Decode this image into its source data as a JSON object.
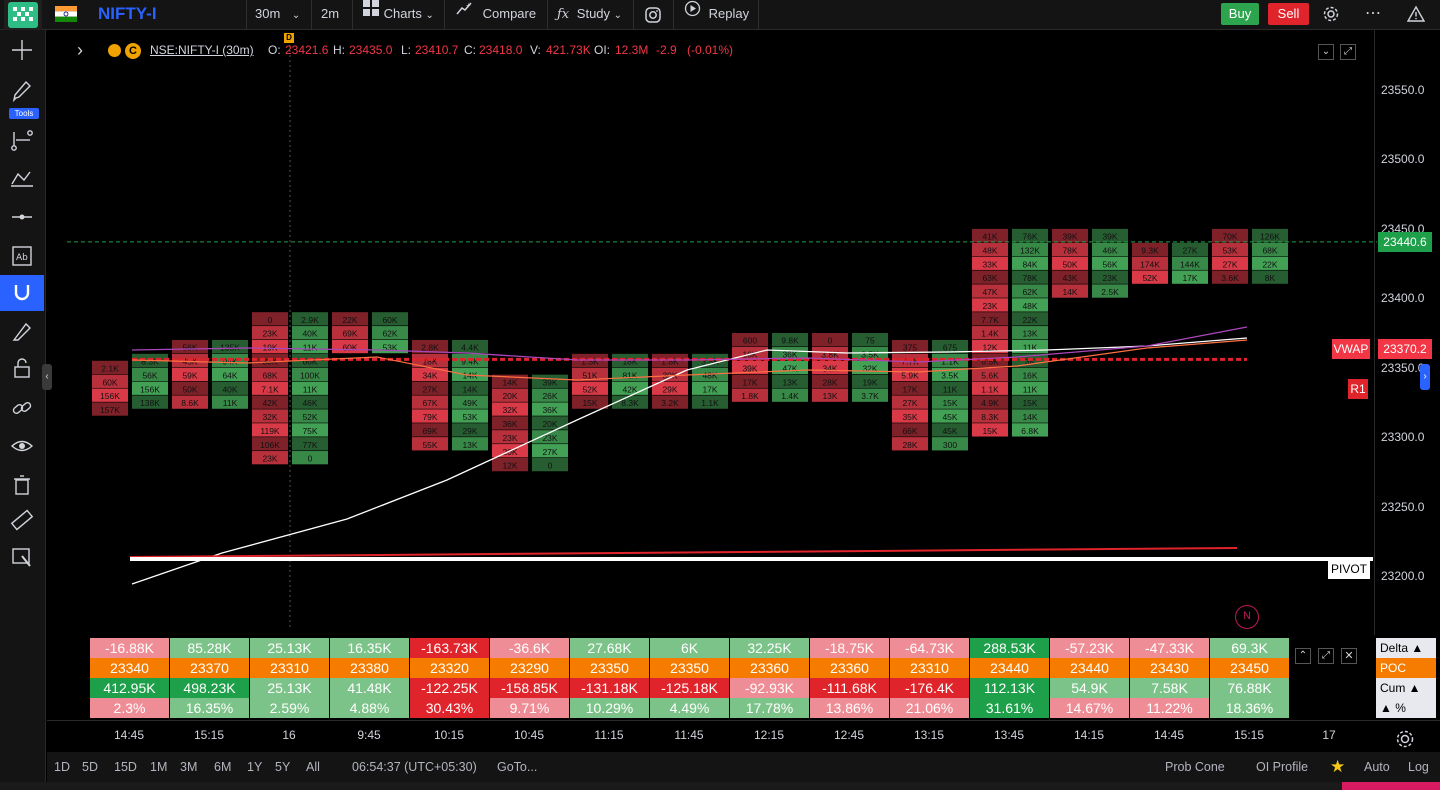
{
  "header": {
    "symbol": "NIFTY-I",
    "interval": "30m",
    "sub_interval": "2m",
    "charts_label": "Charts",
    "compare_label": "Compare",
    "study_label": "Study",
    "replay_label": "Replay",
    "buy_label": "Buy",
    "sell_label": "Sell"
  },
  "left_toolbar": {
    "tools_badge": "Tools",
    "icons": [
      "crosshair-icon",
      "pencil-icon",
      "fib-tool-icon",
      "pattern-icon",
      "horizontal-line-icon",
      "text-box-icon",
      "magnet-icon",
      "brush-icon",
      "lock-icon",
      "link-icon",
      "eye-icon",
      "trash-icon",
      "ruler-icon",
      "zoom-icon"
    ]
  },
  "legend": {
    "symbol": "NSE:NIFTY-I (30m)",
    "o_label": "O:",
    "o_value": "23421.6",
    "h_label": "H:",
    "h_value": "23435.0",
    "l_label": "L:",
    "l_value": "23410.7",
    "c_label": "C:",
    "c_value": "23418.0",
    "v_label": "V:",
    "v_value": "421.73K",
    "oi_label": "OI:",
    "oi_value": "12.3M",
    "change": "-2.9",
    "change_pct": "(-0.01%)",
    "d_marker": "D",
    "n_marker": "N"
  },
  "price_axis": {
    "ticks": [
      "23550.0",
      "23500.0",
      "23450.0",
      "23400.0",
      "23350.0",
      "23300.0",
      "23250.0",
      "23200.0"
    ],
    "last_price": "23440.6",
    "vwap_label": "VWAP",
    "vwap_value": "23370.2",
    "r1_label": "R1",
    "pivot_label": "PIVOT"
  },
  "colors": {
    "buy": "#2da44e",
    "sell": "#e0242b",
    "accent": "#2962ff",
    "last_price": "#1e9f49",
    "vwap": "#f23645",
    "poc_row": "#f57c00"
  },
  "chart_data": {
    "type": "footprint",
    "ylim": [
      23185,
      23575
    ],
    "last_price_line": 23440.6,
    "pivot_level": 23213,
    "bars": [
      {
        "time": "14:45a",
        "top": 23350,
        "cells": [
          "2.1K",
          "60K",
          "156K",
          "157K"
        ],
        "sides": [
          "r",
          "r",
          "r",
          "r"
        ]
      },
      {
        "time": "14:45b",
        "top": 23355,
        "cells": [
          "8.3K",
          "56K",
          "156K",
          "138K"
        ],
        "sides": [
          "g",
          "g",
          "g",
          "g"
        ]
      },
      {
        "time": "15:15a",
        "top": 23365,
        "cells": [
          "56K",
          "45K",
          "59K",
          "50K",
          "8.6K"
        ],
        "sides": [
          "r",
          "r",
          "r",
          "r",
          "r"
        ]
      },
      {
        "time": "15:15b",
        "top": 23365,
        "cells": [
          "135K",
          "94K",
          "64K",
          "40K",
          "11K"
        ],
        "sides": [
          "g",
          "g",
          "g",
          "g",
          "g"
        ]
      },
      {
        "time": "16a",
        "top": 23385,
        "cells": [
          "0",
          "23K",
          "19K",
          "33K",
          "68K",
          "7.1K",
          "42K",
          "32K",
          "119K",
          "106K",
          "23K"
        ],
        "sides": [
          "r",
          "r",
          "r",
          "r",
          "r",
          "r",
          "r",
          "r",
          "r",
          "r",
          "r"
        ]
      },
      {
        "time": "16b",
        "top": 23385,
        "cells": [
          "2.9K",
          "40K",
          "11K",
          "66K",
          "100K",
          "11K",
          "46K",
          "52K",
          "75K",
          "77K",
          "0"
        ],
        "sides": [
          "g",
          "g",
          "g",
          "g",
          "g",
          "g",
          "g",
          "g",
          "g",
          "g",
          "g"
        ]
      },
      {
        "time": "9:45a",
        "top": 23385,
        "cells": [
          "22K",
          "69K",
          "60K"
        ],
        "sides": [
          "r",
          "r",
          "r"
        ]
      },
      {
        "time": "9:45b",
        "top": 23385,
        "cells": [
          "60K",
          "62K",
          "53K"
        ],
        "sides": [
          "g",
          "g",
          "g"
        ]
      },
      {
        "time": "10:15a",
        "top": 23365,
        "cells": [
          "2.8K",
          "18K",
          "34K",
          "27K",
          "67K",
          "79K",
          "69K",
          "55K"
        ],
        "sides": [
          "r",
          "r",
          "r",
          "r",
          "r",
          "r",
          "r",
          "r"
        ]
      },
      {
        "time": "10:15b",
        "top": 23365,
        "cells": [
          "4.4K",
          "9.4K",
          "14K",
          "14K",
          "49K",
          "53K",
          "29K",
          "13K"
        ],
        "sides": [
          "g",
          "g",
          "g",
          "g",
          "g",
          "g",
          "g",
          "g"
        ]
      },
      {
        "time": "10:45a",
        "top": 23340,
        "cells": [
          "14K",
          "20K",
          "32K",
          "36K",
          "23K",
          "20K",
          "12K"
        ],
        "sides": [
          "r",
          "r",
          "r",
          "r",
          "r",
          "r",
          "r"
        ]
      },
      {
        "time": "10:45b",
        "top": 23340,
        "cells": [
          "39K",
          "26K",
          "36K",
          "20K",
          "23K",
          "27K",
          "0"
        ],
        "sides": [
          "g",
          "g",
          "g",
          "g",
          "g",
          "g",
          "g"
        ]
      },
      {
        "time": "11:15a",
        "top": 23355,
        "cells": [
          "1.5K",
          "51K",
          "52K",
          "15K"
        ],
        "sides": [
          "r",
          "r",
          "r",
          "r"
        ]
      },
      {
        "time": "11:15b",
        "top": 23355,
        "cells": [
          "18K",
          "81K",
          "42K",
          "8.3K"
        ],
        "sides": [
          "g",
          "g",
          "g",
          "g"
        ]
      },
      {
        "time": "11:45a",
        "top": 23355,
        "cells": [
          "1.8K",
          "30K",
          "29K",
          "3.2K"
        ],
        "sides": [
          "r",
          "r",
          "r",
          "r"
        ]
      },
      {
        "time": "11:45b",
        "top": 23355,
        "cells": [
          "3.8K",
          "48K",
          "17K",
          "1.1K"
        ],
        "sides": [
          "g",
          "g",
          "g",
          "g"
        ]
      },
      {
        "time": "12:15a",
        "top": 23370,
        "cells": [
          "600",
          "16K",
          "39K",
          "17K",
          "1.8K"
        ],
        "sides": [
          "r",
          "r",
          "r",
          "r",
          "r"
        ]
      },
      {
        "time": "12:15b",
        "top": 23370,
        "cells": [
          "9.8K",
          "36K",
          "47K",
          "13K",
          "1.4K"
        ],
        "sides": [
          "g",
          "g",
          "g",
          "g",
          "g"
        ]
      },
      {
        "time": "12:45a",
        "top": 23370,
        "cells": [
          "0",
          "3.8K",
          "34K",
          "28K",
          "13K"
        ],
        "sides": [
          "r",
          "r",
          "r",
          "r",
          "r"
        ]
      },
      {
        "time": "12:45b",
        "top": 23370,
        "cells": [
          "75",
          "3.5K",
          "32K",
          "19K",
          "3.7K"
        ],
        "sides": [
          "g",
          "g",
          "g",
          "g",
          "g"
        ]
      },
      {
        "time": "13:15a",
        "top": 23365,
        "cells": [
          "375",
          "7.7K",
          "5.9K",
          "17K",
          "27K",
          "35K",
          "66K",
          "28K"
        ],
        "sides": [
          "r",
          "r",
          "r",
          "r",
          "r",
          "r",
          "r",
          "r"
        ]
      },
      {
        "time": "13:15b",
        "top": 23365,
        "cells": [
          "675",
          "1.1K",
          "3.5K",
          "11K",
          "15K",
          "45K",
          "45K",
          "300"
        ],
        "sides": [
          "g",
          "g",
          "g",
          "g",
          "g",
          "g",
          "g",
          "g"
        ]
      },
      {
        "time": "13:45a",
        "top": 23445,
        "cells": [
          "41K",
          "48K",
          "33K",
          "63K",
          "47K",
          "23K",
          "7.7K",
          "1.4K",
          "12K",
          "6.5K",
          "5.6K",
          "1.1K",
          "4.9K",
          "8.3K",
          "15K"
        ],
        "sides": [
          "r",
          "r",
          "r",
          "r",
          "r",
          "r",
          "r",
          "r",
          "r",
          "r",
          "r",
          "r",
          "r",
          "r",
          "r"
        ]
      },
      {
        "time": "13:45b",
        "top": 23445,
        "cells": [
          "76K",
          "132K",
          "84K",
          "78K",
          "62K",
          "48K",
          "22K",
          "13K",
          "11K",
          "3K",
          "16K",
          "11K",
          "15K",
          "14K",
          "6.8K"
        ],
        "sides": [
          "g",
          "g",
          "g",
          "g",
          "g",
          "g",
          "g",
          "g",
          "g",
          "g",
          "g",
          "g",
          "g",
          "g",
          "g"
        ]
      },
      {
        "time": "14:15a",
        "top": 23445,
        "cells": [
          "39K",
          "78K",
          "50K",
          "43K",
          "14K"
        ],
        "sides": [
          "r",
          "r",
          "r",
          "r",
          "r"
        ]
      },
      {
        "time": "14:15b",
        "top": 23445,
        "cells": [
          "39K",
          "46K",
          "56K",
          "23K",
          "2.5K"
        ],
        "sides": [
          "g",
          "g",
          "g",
          "g",
          "g"
        ]
      },
      {
        "time": "14:45c",
        "top": 23435,
        "cells": [
          "9.3K",
          "174K",
          "52K"
        ],
        "sides": [
          "r",
          "r",
          "r"
        ]
      },
      {
        "time": "14:45d",
        "top": 23435,
        "cells": [
          "27K",
          "144K",
          "17K"
        ],
        "sides": [
          "g",
          "g",
          "g"
        ]
      },
      {
        "time": "15:15c",
        "top": 23445,
        "cells": [
          "70K",
          "53K",
          "27K",
          "3.6K"
        ],
        "sides": [
          "r",
          "r",
          "r",
          "r"
        ]
      },
      {
        "time": "15:15d",
        "top": 23445,
        "cells": [
          "126K",
          "68K",
          "22K",
          "8K"
        ],
        "sides": [
          "g",
          "g",
          "g",
          "g"
        ]
      }
    ]
  },
  "stats": {
    "row_labels": [
      "Delta ▲",
      "POC",
      "Cum ▲",
      "▲ %"
    ],
    "delta": [
      "-16.88K",
      "85.28K",
      "25.13K",
      "16.35K",
      "-163.73K",
      "-36.6K",
      "27.68K",
      "6K",
      "32.25K",
      "-18.75K",
      "-64.73K",
      "288.53K",
      "-57.23K",
      "-47.33K",
      "69.3K"
    ],
    "poc": [
      "23340",
      "23370",
      "23310",
      "23380",
      "23320",
      "23290",
      "23350",
      "23350",
      "23360",
      "23360",
      "23310",
      "23440",
      "23440",
      "23430",
      "23450"
    ],
    "cum": [
      "412.95K",
      "498.23K",
      "25.13K",
      "41.48K",
      "-122.25K",
      "-158.85K",
      "-131.18K",
      "-125.18K",
      "-92.93K",
      "-111.68K",
      "-176.4K",
      "112.13K",
      "54.9K",
      "7.58K",
      "76.88K"
    ],
    "pct": [
      "2.3%",
      "16.35%",
      "2.59%",
      "4.88%",
      "30.43%",
      "9.71%",
      "10.29%",
      "4.49%",
      "17.78%",
      "13.86%",
      "21.06%",
      "31.61%",
      "14.67%",
      "11.22%",
      "18.36%"
    ]
  },
  "time_axis": {
    "labels": [
      "14:45",
      "15:15",
      "16",
      "9:45",
      "10:15",
      "10:45",
      "11:15",
      "11:45",
      "12:15",
      "12:45",
      "13:15",
      "13:45",
      "14:15",
      "14:45",
      "15:15",
      "17"
    ]
  },
  "bottom_bar": {
    "ranges": [
      "1D",
      "5D",
      "15D",
      "1M",
      "3M",
      "6M",
      "1Y",
      "5Y",
      "All"
    ],
    "clock": "06:54:37 (UTC+05:30)",
    "goto": "GoTo...",
    "prob_cone": "Prob Cone",
    "oi_profile": "OI Profile",
    "auto": "Auto",
    "log": "Log"
  }
}
